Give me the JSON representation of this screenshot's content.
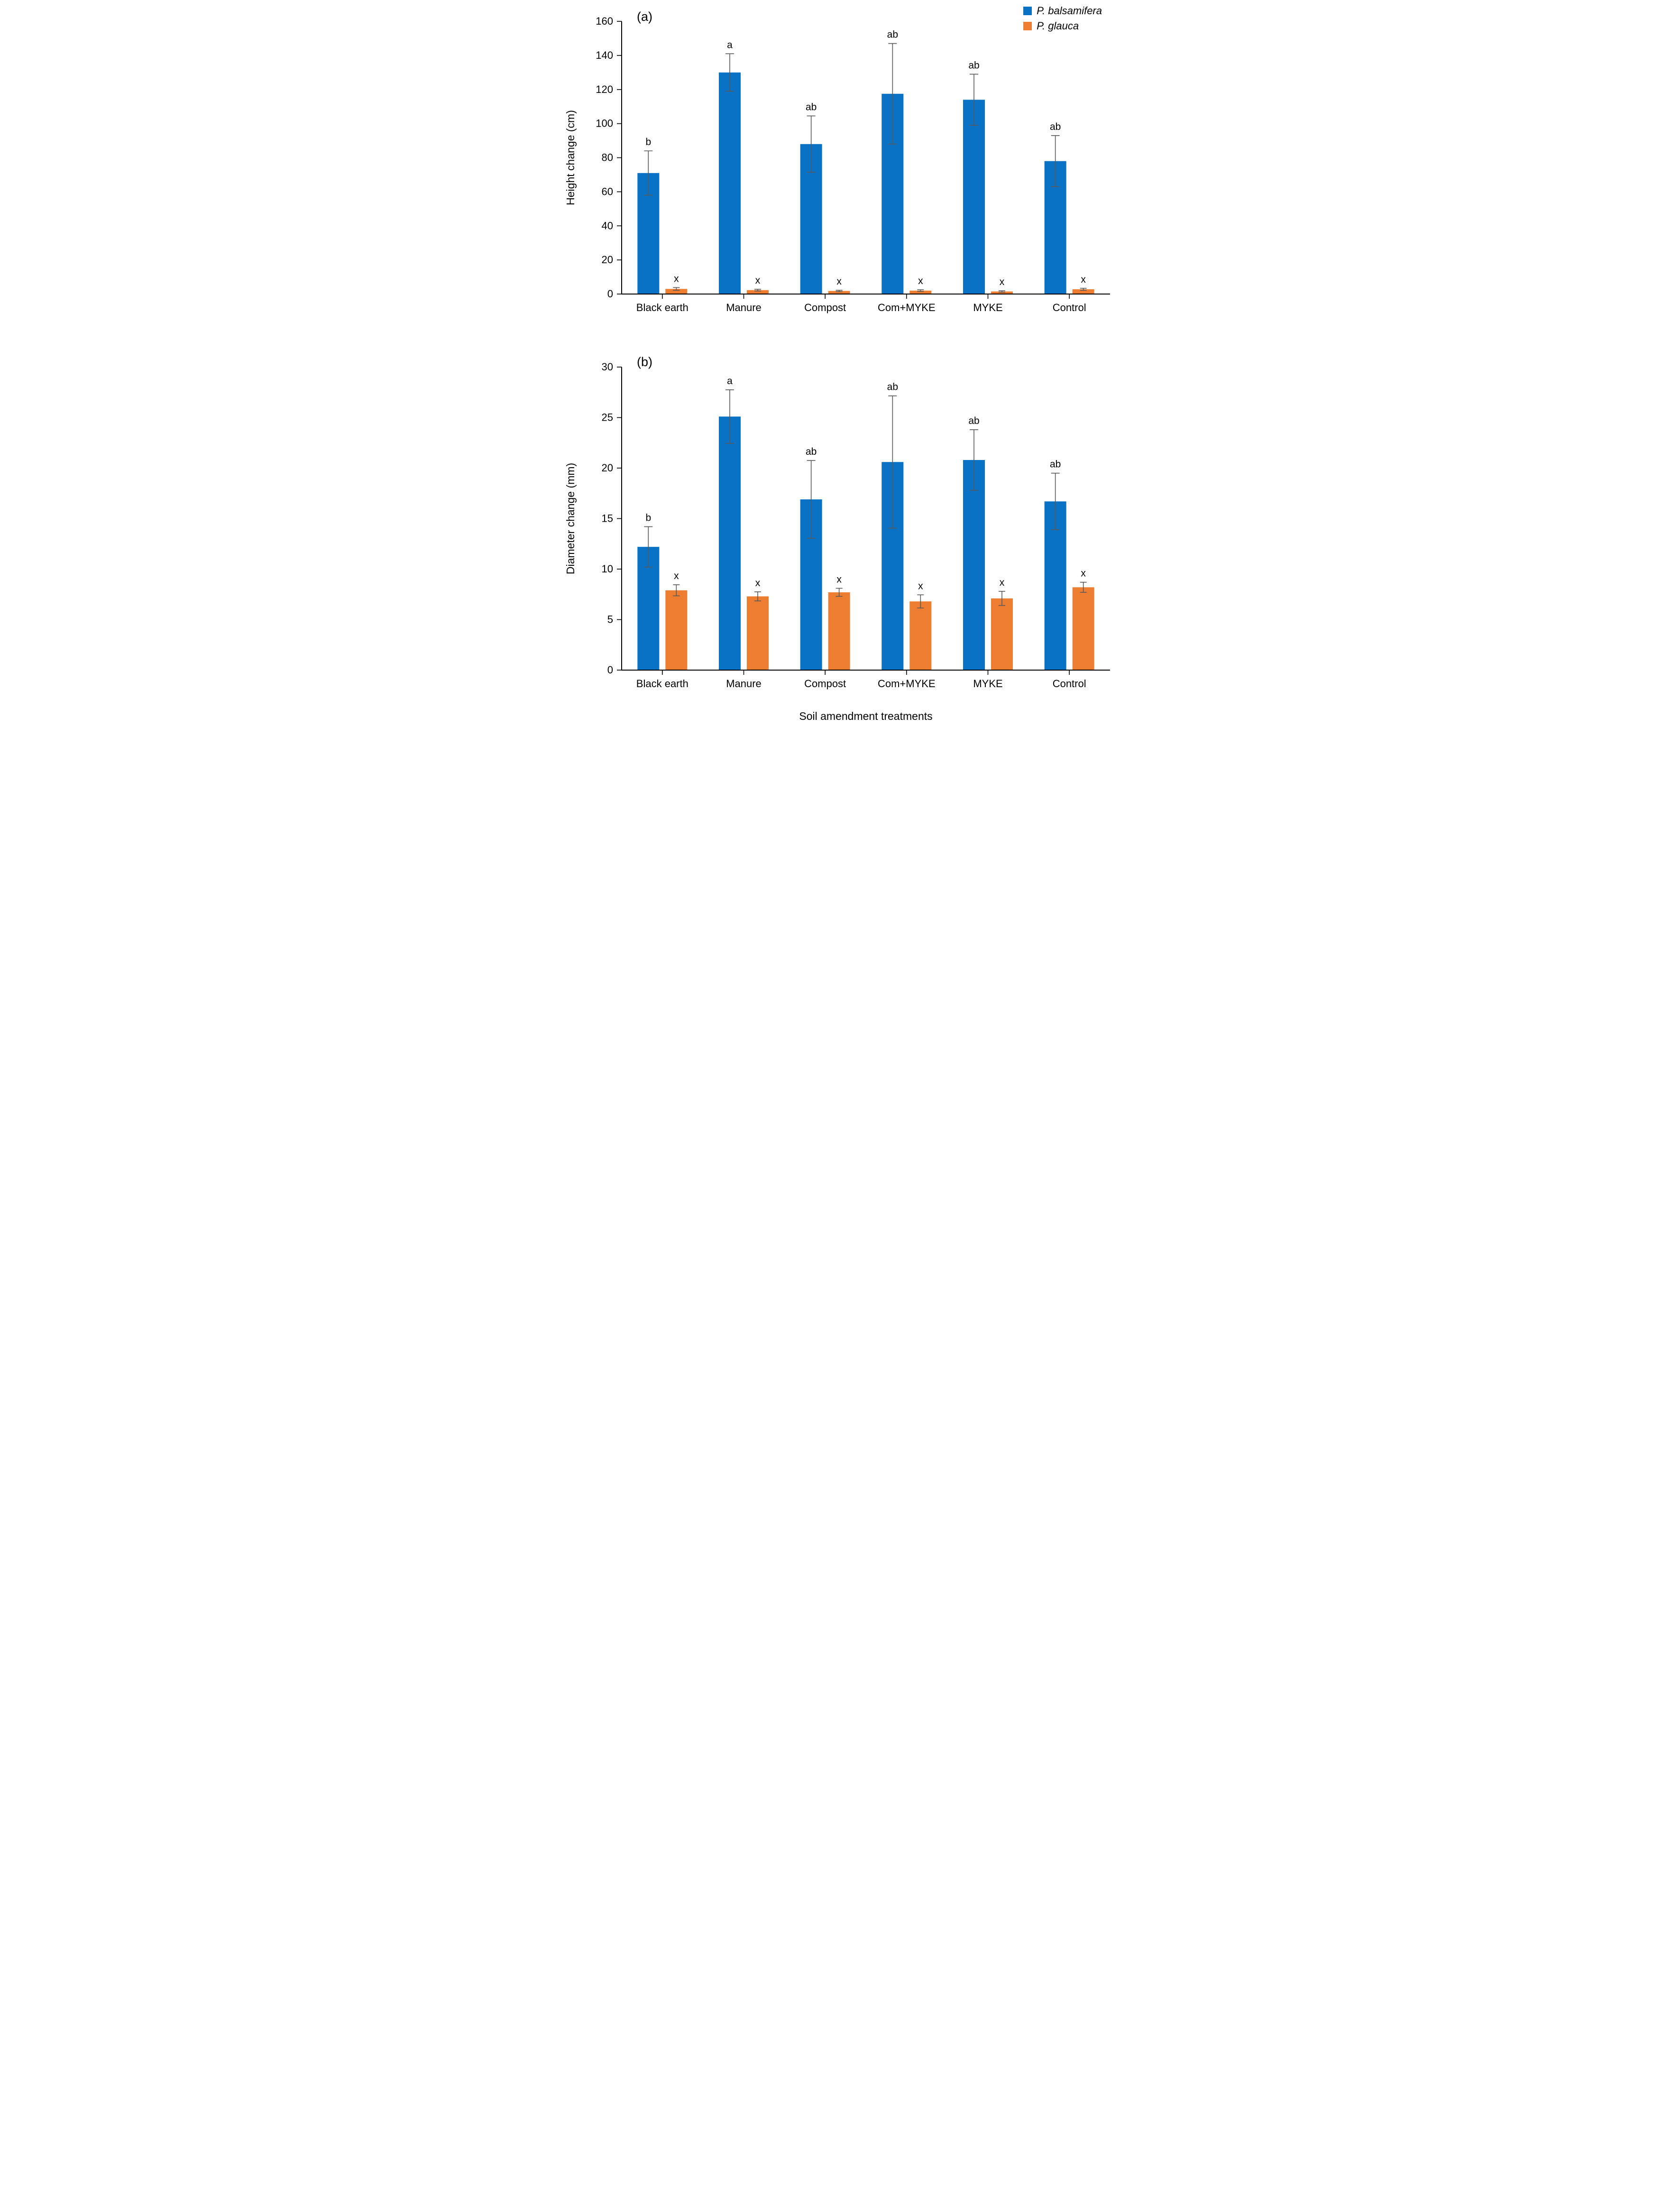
{
  "figure": {
    "x_axis_title": "Soil amendment treatments"
  },
  "legend": {
    "items": [
      {
        "label": "P. balsamifera",
        "color": "#0a72c4"
      },
      {
        "label": "P. glauca",
        "color": "#ed7d31"
      }
    ]
  },
  "colors": {
    "axis": "#000000",
    "error_bar": "#595959",
    "text": "#000000",
    "background": "#ffffff"
  },
  "chart_data": [
    {
      "type": "bar",
      "panel_label": "(a)",
      "title": "",
      "ylabel": "Height change (cm)",
      "xlabel": "",
      "ylim": [
        0,
        160
      ],
      "yticks": [
        0,
        20,
        40,
        60,
        80,
        100,
        120,
        140,
        160
      ],
      "grid": false,
      "legend_position": "top-right",
      "categories": [
        "Black earth",
        "Manure",
        "Compost",
        "Com+MYKE",
        "MYKE",
        "Control"
      ],
      "series": [
        {
          "name": "P. balsamifera",
          "color": "#0a72c4",
          "values": [
            71,
            130,
            88,
            117.5,
            114,
            78
          ],
          "error": [
            13,
            11,
            16.5,
            29.5,
            15,
            15
          ],
          "letters": [
            "b",
            "a",
            "ab",
            "ab",
            "ab",
            "ab"
          ]
        },
        {
          "name": "P. glauca",
          "color": "#ed7d31",
          "values": [
            3,
            2.3,
            1.8,
            2,
            1.5,
            2.8
          ],
          "error": [
            0.8,
            0.5,
            0.4,
            0.5,
            0.4,
            0.6
          ],
          "letters": [
            "x",
            "x",
            "x",
            "x",
            "x",
            "x"
          ]
        }
      ]
    },
    {
      "type": "bar",
      "panel_label": "(b)",
      "title": "",
      "ylabel": "Diameter change (mm)",
      "xlabel": "Soil amendment treatments",
      "ylim": [
        0,
        30
      ],
      "yticks": [
        0,
        5,
        10,
        15,
        20,
        25,
        30
      ],
      "grid": false,
      "legend_position": "none",
      "categories": [
        "Black earth",
        "Manure",
        "Compost",
        "Com+MYKE",
        "MYKE",
        "Control"
      ],
      "series": [
        {
          "name": "P. balsamifera",
          "color": "#0a72c4",
          "values": [
            12.2,
            25.1,
            16.9,
            20.6,
            20.8,
            16.7
          ],
          "error": [
            2.0,
            2.65,
            3.85,
            6.55,
            3.0,
            2.8
          ],
          "letters": [
            "b",
            "a",
            "ab",
            "ab",
            "ab",
            "ab"
          ]
        },
        {
          "name": "P. glauca",
          "color": "#ed7d31",
          "values": [
            7.9,
            7.3,
            7.7,
            6.8,
            7.1,
            8.2
          ],
          "error": [
            0.55,
            0.45,
            0.4,
            0.65,
            0.7,
            0.5
          ],
          "letters": [
            "x",
            "x",
            "x",
            "x",
            "x",
            "x"
          ]
        }
      ]
    }
  ]
}
